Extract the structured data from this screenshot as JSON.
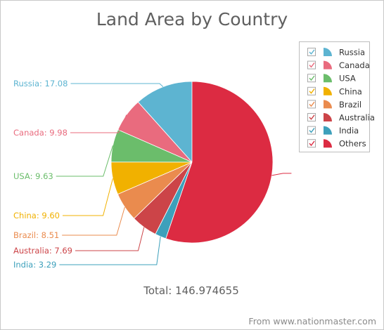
{
  "chart_data": {
    "type": "pie",
    "title": "Land Area by Country",
    "categories": [
      "Russia",
      "Canada",
      "USA",
      "China",
      "Brazil",
      "Australia",
      "India",
      "Others"
    ],
    "values": [
      17.08,
      9.98,
      9.63,
      9.6,
      8.51,
      7.69,
      3.29,
      81.19
    ],
    "data_labels": [
      "Russia: 17.08",
      "Canada: 9.98",
      "USA: 9.63",
      "China: 9.60",
      "Brazil: 8.51",
      "Australia: 7.69",
      "India: 3.29",
      ""
    ],
    "colors": [
      "#5db4d1",
      "#e96b7e",
      "#6bbd6b",
      "#f1b100",
      "#ea8b4e",
      "#cc4448",
      "#3da0bb",
      "#dc2b42"
    ],
    "legend_position": "top-right",
    "legend_checked": [
      true,
      true,
      true,
      true,
      true,
      true,
      true,
      true
    ],
    "total_label": "Total: 146.974655",
    "footer": "From www.nationmaster.com"
  }
}
